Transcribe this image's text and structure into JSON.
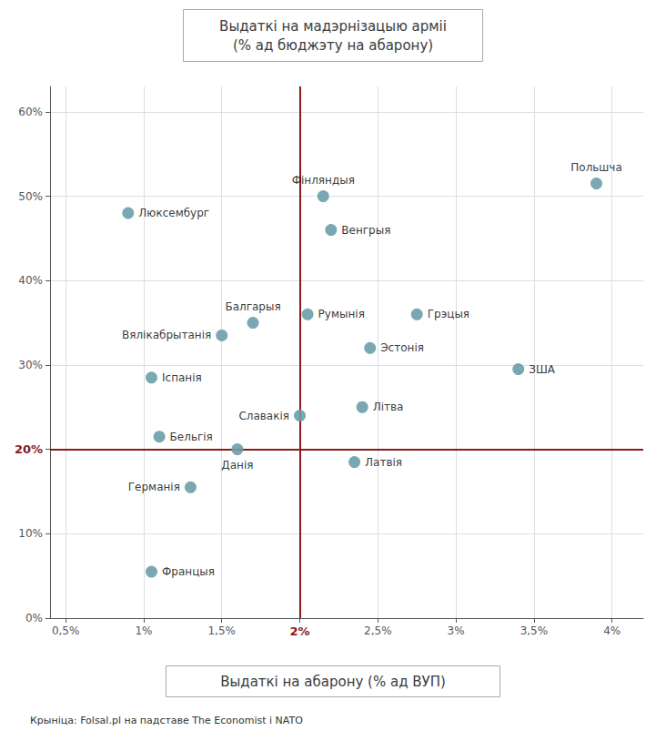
{
  "chart_data": {
    "type": "scatter",
    "ylabel": "Выдаткі на мадэрнізацыю арміі\n(% ад бюджэту на абарону)",
    "xlabel": "Выдаткі на абарону (% ад ВУП)",
    "source": "Крыніца: Folsal.pl на падставе The Economist i NATO",
    "labels": [
      "Люксембург",
      "Фінляндыя",
      "Польшча",
      "Балгарыя",
      "Венгрыя",
      "Грэцыя",
      "Румынія",
      "Вялікабрытанія",
      "Эстонія",
      "ЗША",
      "Іспанія",
      "Літва",
      "Бельгія",
      "Германія",
      "Данія",
      "Францыя",
      "Славакія",
      "Латвія"
    ],
    "x": [
      0.9,
      2.15,
      3.9,
      1.7,
      2.2,
      2.75,
      2.05,
      1.5,
      2.45,
      3.4,
      1.05,
      2.4,
      1.1,
      1.3,
      1.6,
      1.05,
      2.0,
      2.35
    ],
    "values": [
      48.0,
      50.0,
      51.5,
      35.0,
      46.0,
      36.0,
      36.0,
      33.5,
      32.0,
      29.5,
      28.5,
      25.0,
      21.5,
      15.5,
      20.0,
      5.5,
      24.0,
      18.5
    ],
    "color": "#6b9eaa",
    "xlim": [
      0.4,
      4.2
    ],
    "ylim": [
      0.0,
      63.0
    ],
    "xticks": [
      {
        "value": 0.5,
        "label": "0,5%"
      },
      {
        "value": 1.0,
        "label": "1%"
      },
      {
        "value": 1.5,
        "label": "1,5%"
      },
      {
        "value": 2.0,
        "label": "2%"
      },
      {
        "value": 2.5,
        "label": "2,5%"
      },
      {
        "value": 3.0,
        "label": "3%"
      },
      {
        "value": 3.5,
        "label": "3,5%"
      },
      {
        "value": 4.0,
        "label": "4%"
      }
    ],
    "yticks": [
      {
        "value": 0,
        "label": "0%"
      },
      {
        "value": 10,
        "label": "10%"
      },
      {
        "value": 20,
        "label": "20%"
      },
      {
        "value": 30,
        "label": "30%"
      },
      {
        "value": 40,
        "label": "40%"
      },
      {
        "value": 50,
        "label": "50%"
      },
      {
        "value": 60,
        "label": "60%"
      }
    ],
    "grid": true,
    "ref_lines": {
      "x": 2.0,
      "y": 20.0,
      "color": "#8b1a1a"
    }
  }
}
